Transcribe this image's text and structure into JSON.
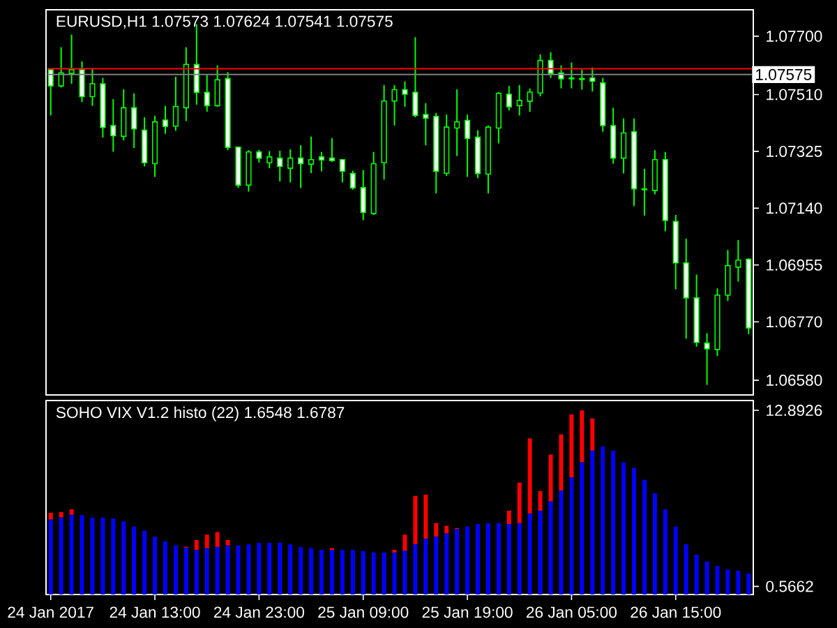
{
  "chart_data": [
    {
      "type": "candlestick",
      "title": "EURUSD,H1 1.07573 1.07624 1.07541 1.07575",
      "color": "#00ff00",
      "tick_labels": "y",
      "categories": [
        null,
        null,
        null,
        null,
        null,
        null,
        null,
        null,
        null,
        null,
        null,
        null,
        null,
        null,
        null,
        null,
        null,
        null,
        null,
        null,
        null,
        null,
        null,
        null,
        null,
        null,
        null,
        null,
        null,
        null,
        null,
        null,
        null,
        null,
        null,
        null,
        null,
        null,
        null,
        null,
        null,
        null,
        null,
        null,
        null,
        null,
        null,
        null,
        null,
        null,
        null,
        null,
        null,
        null,
        null,
        null,
        null,
        null,
        null,
        null,
        null,
        null,
        null,
        null,
        null,
        null,
        null,
        null
      ],
      "ohlc": [
        [
          1.07591,
          1.07591,
          1.07442,
          1.07538
        ],
        [
          1.07538,
          1.07664,
          1.07533,
          1.0758
        ],
        [
          1.07579,
          1.07705,
          1.07545,
          1.07591
        ],
        [
          1.07591,
          1.07618,
          1.07485,
          1.07503
        ],
        [
          1.07503,
          1.07594,
          1.07473,
          1.07545
        ],
        [
          1.07545,
          1.07564,
          1.0737,
          1.07403
        ],
        [
          1.07409,
          1.07495,
          1.07324,
          1.07376
        ],
        [
          1.07374,
          1.07527,
          1.07361,
          1.07467
        ],
        [
          1.07467,
          1.07514,
          1.07336,
          1.07398
        ],
        [
          1.07394,
          1.07436,
          1.07276,
          1.07288
        ],
        [
          1.07285,
          1.07441,
          1.07242,
          1.07421
        ],
        [
          1.07427,
          1.07473,
          1.07382,
          1.07406
        ],
        [
          1.07407,
          1.07568,
          1.07392,
          1.07471
        ],
        [
          1.07467,
          1.07664,
          1.07424,
          1.07608
        ],
        [
          1.07608,
          1.07739,
          1.07477,
          1.07517
        ],
        [
          1.07517,
          1.07576,
          1.07454,
          1.07474
        ],
        [
          1.07474,
          1.07605,
          1.0747,
          1.07558
        ],
        [
          1.07562,
          1.07583,
          1.07329,
          1.07338
        ],
        [
          1.07339,
          1.07339,
          1.07206,
          1.07215
        ],
        [
          1.07215,
          1.07329,
          1.07194,
          1.07323
        ],
        [
          1.07323,
          1.0733,
          1.07288,
          1.07303
        ],
        [
          1.07288,
          1.07326,
          1.0727,
          1.07307
        ],
        [
          1.07303,
          1.07327,
          1.07227,
          1.07276
        ],
        [
          1.0727,
          1.07332,
          1.07224,
          1.07303
        ],
        [
          1.07303,
          1.07345,
          1.07206,
          1.07285
        ],
        [
          1.07283,
          1.07373,
          1.07254,
          1.07298
        ],
        [
          1.07307,
          1.07323,
          1.0726,
          1.07297
        ],
        [
          1.07303,
          1.07368,
          1.07291,
          1.07295
        ],
        [
          1.07298,
          1.07298,
          1.07224,
          1.0726
        ],
        [
          1.07253,
          1.07262,
          1.072,
          1.07206
        ],
        [
          1.07207,
          1.07264,
          1.07101,
          1.07126
        ],
        [
          1.07123,
          1.07323,
          1.07118,
          1.07285
        ],
        [
          1.07288,
          1.07541,
          1.07233,
          1.07489
        ],
        [
          1.07489,
          1.07541,
          1.07409,
          1.07526
        ],
        [
          1.07526,
          1.07553,
          1.0747,
          1.07511
        ],
        [
          1.07517,
          1.07697,
          1.07436,
          1.07442
        ],
        [
          1.07445,
          1.07482,
          1.07345,
          1.07433
        ],
        [
          1.07439,
          1.0745,
          1.07188,
          1.0726
        ],
        [
          1.07254,
          1.07445,
          1.07245,
          1.07404
        ],
        [
          1.07401,
          1.07527,
          1.0731,
          1.07421
        ],
        [
          1.07426,
          1.07445,
          1.07242,
          1.07367
        ],
        [
          1.07371,
          1.07394,
          1.07238,
          1.07253
        ],
        [
          1.07251,
          1.07409,
          1.07188,
          1.07404
        ],
        [
          1.07401,
          1.07518,
          1.07351,
          1.07514
        ],
        [
          1.07511,
          1.07538,
          1.07458,
          1.0747
        ],
        [
          1.07474,
          1.07541,
          1.07442,
          1.07491
        ],
        [
          1.07488,
          1.0753,
          1.07454,
          1.07518
        ],
        [
          1.07515,
          1.07641,
          1.07504,
          1.07621
        ],
        [
          1.07621,
          1.07648,
          1.07564,
          1.07579
        ],
        [
          1.0758,
          1.07605,
          1.0753,
          1.07561
        ],
        [
          1.07564,
          1.07614,
          1.0753,
          1.07561
        ],
        [
          1.07562,
          1.07591,
          1.07526,
          1.07559
        ],
        [
          1.07564,
          1.07598,
          1.0752,
          1.07553
        ],
        [
          1.07548,
          1.07564,
          1.07389,
          1.07409
        ],
        [
          1.07409,
          1.07467,
          1.07285,
          1.07303
        ],
        [
          1.07303,
          1.07432,
          1.07253,
          1.07385
        ],
        [
          1.07389,
          1.07432,
          1.07147,
          1.07203
        ],
        [
          1.07203,
          1.07268,
          1.07116,
          1.072
        ],
        [
          1.07198,
          1.07329,
          1.07185,
          1.07298
        ],
        [
          1.07298,
          1.07323,
          1.07065,
          1.071
        ],
        [
          1.07097,
          1.07118,
          1.06876,
          1.06962
        ],
        [
          1.06962,
          1.07041,
          1.06715,
          1.06848
        ],
        [
          1.06848,
          1.06924,
          1.06689,
          1.06703
        ],
        [
          1.06701,
          1.06733,
          1.06565,
          1.06682
        ],
        [
          1.0668,
          1.06879,
          1.06659,
          1.06857
        ],
        [
          1.06857,
          1.07004,
          1.06838,
          1.06953
        ],
        [
          1.06948,
          1.07036,
          1.06901,
          1.06971
        ],
        [
          1.06974,
          1.06977,
          1.0673,
          1.0675
        ]
      ],
      "ylim": [
        1.06532,
        1.07786
      ],
      "yticks": [
        {
          "value": 1.077,
          "label": "1.07700"
        },
        {
          "value": 1.0751,
          "label": "1.07510"
        },
        {
          "value": 1.07325,
          "label": "1.07325"
        },
        {
          "value": 1.0714,
          "label": "1.07140"
        },
        {
          "value": 1.06955,
          "label": "1.06955"
        },
        {
          "value": 1.0677,
          "label": "1.06770"
        },
        {
          "value": 1.0658,
          "label": "1.06580"
        }
      ],
      "ref_lines": [
        {
          "axis": "y",
          "value": 1.07594,
          "color": "#ff0000"
        },
        {
          "axis": "y",
          "value": 1.07575,
          "label": "1.07575",
          "color": "#808080"
        }
      ]
    },
    {
      "type": "bar",
      "stacked": true,
      "title": "SOHO VIX V1.2 histo (22) 1.6548 1.6787",
      "categories": [
        "24 Jan 2017",
        null,
        null,
        null,
        null,
        null,
        null,
        null,
        null,
        null,
        "24 Jan 13:00",
        null,
        null,
        null,
        null,
        null,
        null,
        null,
        null,
        null,
        "24 Jan 23:00",
        null,
        null,
        null,
        null,
        null,
        null,
        null,
        null,
        null,
        "25 Jan 09:00",
        null,
        null,
        null,
        null,
        null,
        null,
        null,
        null,
        null,
        "25 Jan 19:00",
        null,
        null,
        null,
        null,
        null,
        null,
        null,
        null,
        null,
        "26 Jan 05:00",
        null,
        null,
        null,
        null,
        null,
        null,
        null,
        null,
        null,
        "26 Jan 15:00",
        null,
        null,
        null,
        null,
        null,
        null,
        null
      ],
      "series": [
        {
          "color": "#0000ff",
          "values": [
            5.25,
            5.4,
            5.59,
            5.56,
            5.4,
            5.4,
            5.31,
            5.12,
            4.75,
            4.47,
            4.06,
            3.72,
            3.44,
            3.28,
            3.12,
            3.25,
            3.34,
            3.44,
            3.44,
            3.5,
            3.62,
            3.62,
            3.62,
            3.5,
            3.31,
            3.25,
            3.12,
            3.12,
            3.12,
            3.12,
            3.03,
            2.94,
            2.94,
            2.94,
            3.06,
            3.53,
            3.91,
            4.06,
            4.28,
            4.59,
            4.75,
            4.93,
            5.0,
            5.0,
            4.93,
            5.0,
            5.68,
            5.87,
            6.53,
            7.28,
            8.21,
            9.27,
            10.08,
            10.36,
            10.08,
            9.24,
            8.87,
            8.02,
            7.09,
            5.96,
            4.75,
            3.53,
            2.78,
            2.31,
            2.0,
            1.75,
            1.66,
            1.47
          ]
        },
        {
          "color": "#ff0000",
          "values": [
            0.47,
            0.37,
            0.37,
            null,
            null,
            null,
            null,
            null,
            null,
            null,
            null,
            null,
            null,
            0.06,
            0.69,
            0.94,
            1.03,
            0.37,
            null,
            null,
            null,
            null,
            null,
            null,
            null,
            null,
            null,
            0.13,
            null,
            null,
            null,
            null,
            null,
            0.18,
            1.13,
            3.37,
            3.08,
            0.94,
            0.53,
            0.06,
            null,
            null,
            null,
            null,
            0.94,
            2.84,
            5.25,
            1.37,
            3.27,
            3.93,
            4.4,
            3.62,
            2.25,
            null,
            null,
            null,
            null,
            null,
            null,
            null,
            null,
            null,
            null,
            null,
            null,
            null,
            null,
            null
          ]
        }
      ],
      "ylim": [
        0,
        13.58
      ],
      "yticks": [
        12.8926,
        0.5662
      ]
    }
  ]
}
